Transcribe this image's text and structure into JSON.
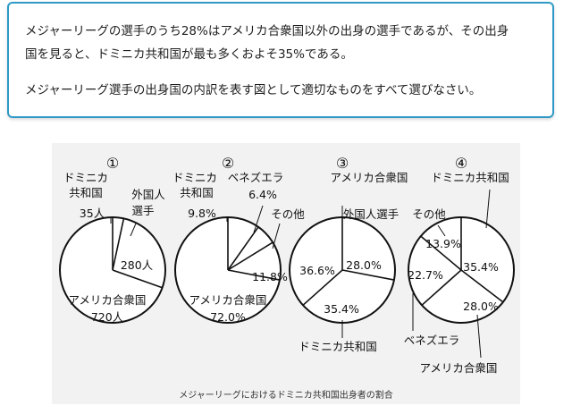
{
  "question": {
    "line1": "メジャーリーグの選手のうち28%はアメリカ合衆国以外の出身の選手であるが、その出身",
    "line2": "国を見ると、ドミニカ共和国が最も多くおよそ35%である。",
    "line3": "メジャーリーグ選手の出身国の内訳を表す図として適切なものをすべて選びなさい。"
  },
  "caption": "メジャーリーグにおけるドミニカ共和国出身者の割合",
  "colors": {
    "border": "#2f9ac7",
    "figure_bg": "#f2f2f2",
    "stroke": "#111111"
  },
  "chart_data": [
    {
      "type": "pie",
      "number": "①",
      "slices": [
        {
          "label_lines": [
            "ドミニカ",
            "共和国"
          ],
          "value_text": "35人",
          "value": 35
        },
        {
          "label_lines": [
            "外国人",
            "選手"
          ],
          "value_text": "280人",
          "value": 280
        },
        {
          "label_lines": [
            "アメリカ合衆国"
          ],
          "value_text": "720人",
          "value": 720
        }
      ]
    },
    {
      "type": "pie",
      "number": "②",
      "slices": [
        {
          "label_lines": [
            "ドミニカ",
            "共和国"
          ],
          "value_text": "9.8%",
          "value": 9.8
        },
        {
          "label_lines": [
            "ベネズエラ"
          ],
          "value_text": "6.4%",
          "value": 6.4
        },
        {
          "label_lines": [
            "その他"
          ],
          "value_text": "11.8%",
          "value": 11.8
        },
        {
          "label_lines": [
            "アメリカ合衆国"
          ],
          "value_text": "72.0%",
          "value": 72.0
        }
      ]
    },
    {
      "type": "pie",
      "number": "③",
      "slices": [
        {
          "label_lines": [
            "外国人選手"
          ],
          "value_text": "28.0%",
          "value": 28.0
        },
        {
          "label_lines": [
            "ドミニカ共和国"
          ],
          "value_text": "35.4%",
          "value": 35.4
        },
        {
          "label_lines": [
            "アメリカ合衆国"
          ],
          "value_text": "36.6%",
          "value": 36.6
        }
      ]
    },
    {
      "type": "pie",
      "number": "④",
      "slices": [
        {
          "label_lines": [
            "ドミニカ共和国"
          ],
          "value_text": "35.4%",
          "value": 35.4
        },
        {
          "label_lines": [
            "アメリカ合衆国"
          ],
          "value_text": "28.0%",
          "value": 28.0
        },
        {
          "label_lines": [
            "ベネズエラ"
          ],
          "value_text": "22.7%",
          "value": 22.7
        },
        {
          "label_lines": [
            "その他"
          ],
          "value_text": "13.9%",
          "value": 13.9
        }
      ]
    }
  ]
}
